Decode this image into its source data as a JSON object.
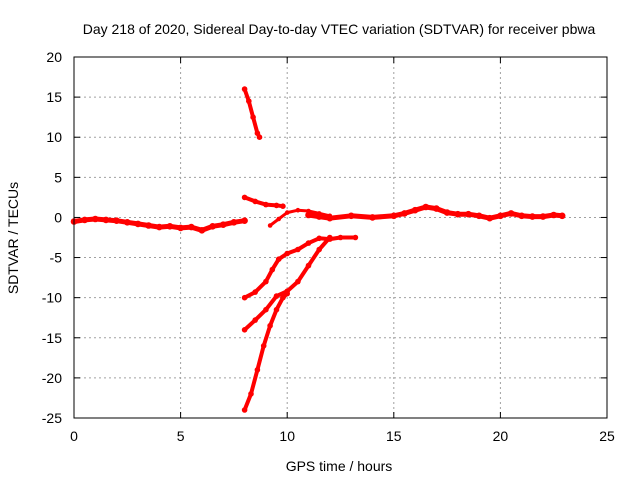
{
  "chart_data": {
    "type": "scatter",
    "title": "Day 218 of 2020, Sidereal Day-to-day VTEC variation (SDTVAR) for receiver pbwa",
    "xlabel": "GPS time / hours",
    "ylabel": "SDTVAR / TECUs",
    "xlim": [
      0,
      25
    ],
    "ylim": [
      -25,
      20
    ],
    "xticks": [
      "0",
      "5",
      "10",
      "15",
      "20",
      "25"
    ],
    "yticks": [
      "20",
      "15",
      "10",
      "5",
      "0",
      "-5",
      "-10",
      "-15",
      "-20",
      "-25"
    ],
    "grid": true,
    "series_color": "#ff0000",
    "series": [
      {
        "name": "main",
        "width": 5,
        "points": [
          [
            0,
            -0.5
          ],
          [
            0.5,
            -0.3
          ],
          [
            1,
            -0.2
          ],
          [
            1.5,
            -0.3
          ],
          [
            2,
            -0.4
          ],
          [
            2.5,
            -0.6
          ],
          [
            3,
            -0.8
          ],
          [
            3.5,
            -1.0
          ],
          [
            4,
            -1.2
          ],
          [
            4.5,
            -1.1
          ],
          [
            5,
            -1.3
          ],
          [
            5.5,
            -1.2
          ],
          [
            6,
            -1.6
          ],
          [
            6.5,
            -1.1
          ],
          [
            7,
            -0.9
          ],
          [
            7.5,
            -0.6
          ],
          [
            8,
            -0.4
          ]
        ]
      },
      {
        "name": "main-late",
        "width": 5,
        "points": [
          [
            11,
            0.3
          ],
          [
            11.5,
            0.1
          ],
          [
            12,
            -0.1
          ],
          [
            13,
            0.2
          ],
          [
            14,
            0
          ],
          [
            15,
            0.2
          ],
          [
            15.5,
            0.5
          ],
          [
            16,
            0.9
          ],
          [
            16.5,
            1.3
          ],
          [
            17,
            1.1
          ],
          [
            17.5,
            0.6
          ],
          [
            18,
            0.4
          ],
          [
            18.5,
            0.4
          ],
          [
            19,
            0.2
          ],
          [
            19.5,
            -0.1
          ],
          [
            20,
            0.2
          ],
          [
            20.5,
            0.5
          ],
          [
            21,
            0.2
          ],
          [
            21.5,
            0.1
          ],
          [
            22,
            0.1
          ],
          [
            22.5,
            0.3
          ],
          [
            22.9,
            0.2
          ]
        ]
      },
      {
        "name": "high-arc",
        "width": 4,
        "points": [
          [
            8,
            16
          ],
          [
            8.2,
            14.5
          ],
          [
            8.4,
            12.5
          ],
          [
            8.6,
            10.5
          ],
          [
            8.7,
            10
          ]
        ]
      },
      {
        "name": "mid-arc",
        "width": 4,
        "points": [
          [
            8,
            2.5
          ],
          [
            8.5,
            2
          ],
          [
            9,
            1.6
          ],
          [
            9.5,
            1.5
          ],
          [
            9.8,
            1.4
          ]
        ]
      },
      {
        "name": "rising-arc",
        "width": 3,
        "points": [
          [
            9.2,
            -1
          ],
          [
            9.6,
            -0.2
          ],
          [
            10,
            0.6
          ],
          [
            10.5,
            0.9
          ],
          [
            11,
            0.8
          ],
          [
            11.5,
            0.5
          ],
          [
            12,
            0.2
          ]
        ]
      },
      {
        "name": "low-arc-a",
        "width": 4,
        "points": [
          [
            8,
            -10
          ],
          [
            8.5,
            -9.3
          ],
          [
            9,
            -8
          ],
          [
            9.3,
            -6.5
          ],
          [
            9.6,
            -5.2
          ],
          [
            10,
            -4.5
          ],
          [
            10.5,
            -4
          ],
          [
            11,
            -3.2
          ],
          [
            11.5,
            -2.6
          ],
          [
            12,
            -2.7
          ],
          [
            12.5,
            -2.5
          ],
          [
            13.2,
            -2.5
          ]
        ]
      },
      {
        "name": "low-arc-b",
        "width": 4,
        "points": [
          [
            8,
            -14
          ],
          [
            8.5,
            -12.8
          ],
          [
            9,
            -11.5
          ],
          [
            9.5,
            -9.8
          ],
          [
            10,
            -9.2
          ],
          [
            10.5,
            -8
          ],
          [
            11,
            -6
          ],
          [
            11.5,
            -4
          ],
          [
            12,
            -2.5
          ]
        ]
      },
      {
        "name": "deep-arc",
        "width": 4,
        "points": [
          [
            8,
            -24
          ],
          [
            8.3,
            -22
          ],
          [
            8.6,
            -19
          ],
          [
            8.9,
            -16
          ],
          [
            9.2,
            -13.5
          ],
          [
            9.5,
            -11.5
          ],
          [
            9.8,
            -10
          ],
          [
            10,
            -9.5
          ]
        ]
      }
    ]
  }
}
